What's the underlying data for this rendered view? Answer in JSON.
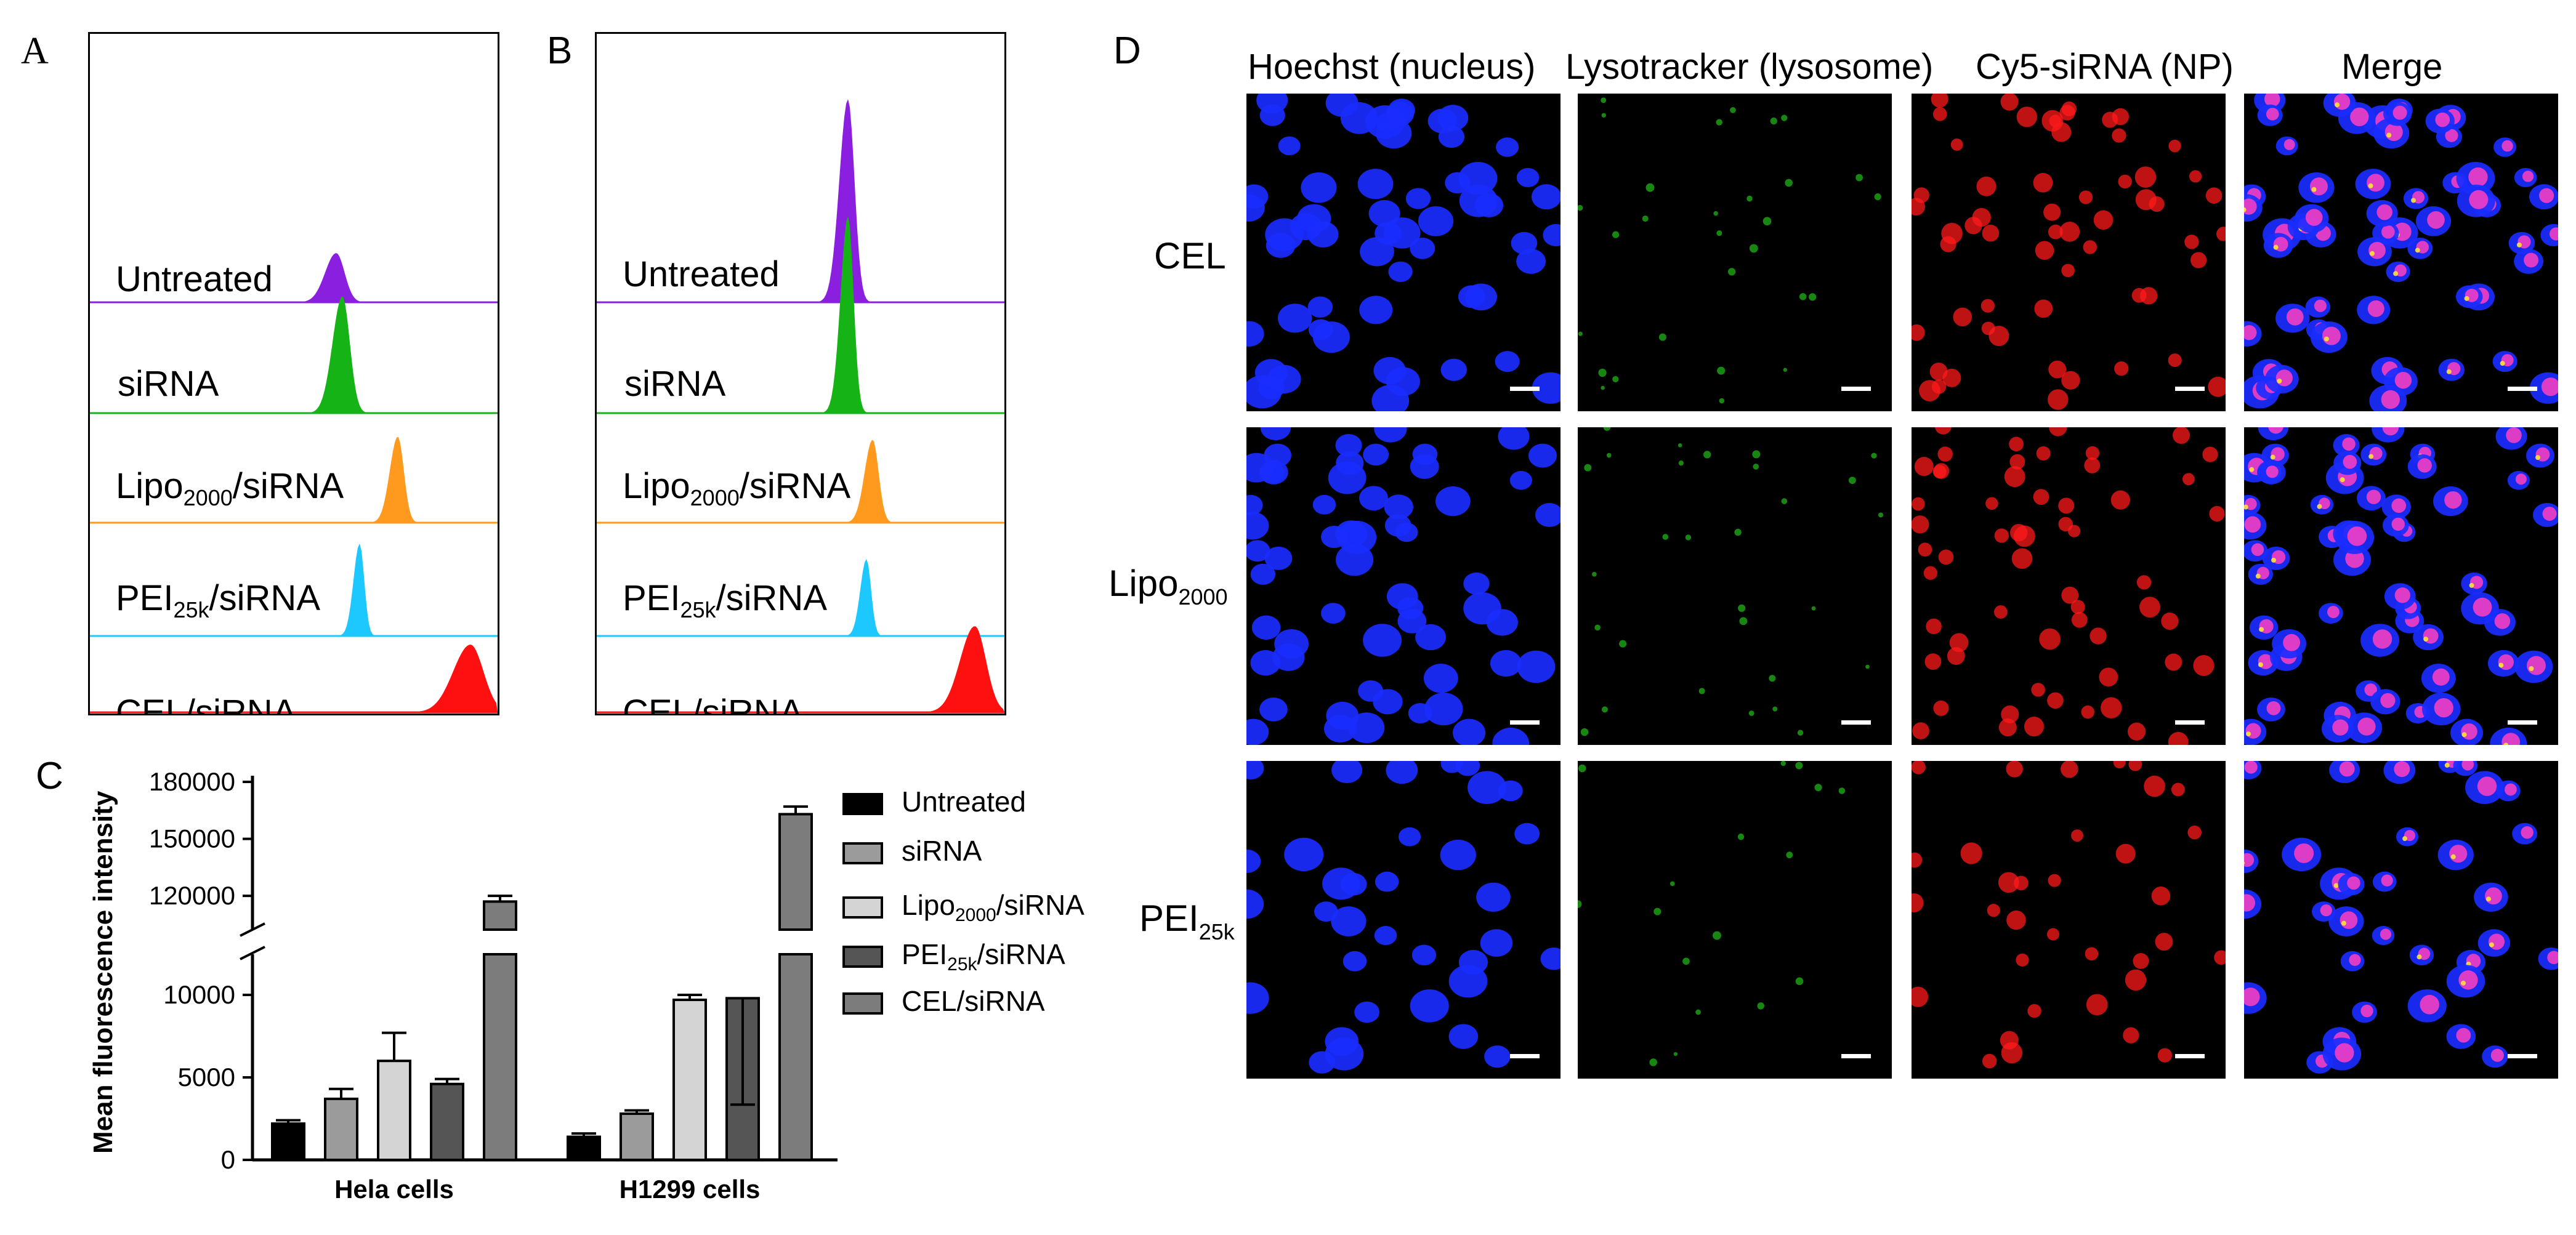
{
  "panel_labels": {
    "a": "A",
    "b": "B",
    "c": "C",
    "d": "D"
  },
  "histograms": {
    "labels": [
      {
        "main": "Untreated",
        "sub": "",
        "tail": ""
      },
      {
        "main": "siRNA",
        "sub": "",
        "tail": ""
      },
      {
        "main": "Lipo",
        "sub": "2000",
        "tail": "/siRNA"
      },
      {
        "main": "PEI",
        "sub": "25k",
        "tail": "/siRNA"
      },
      {
        "main": "CEL/siRNA",
        "sub": "",
        "tail": ""
      }
    ],
    "colors": [
      "#8a1fe0",
      "#16b316",
      "#ff9a1f",
      "#1cc8ff",
      "#ff1010"
    ]
  },
  "chart_data": {
    "type": "bar",
    "ylabel": "Mean fluorescence intensity",
    "y_axis_break": [
      10000,
      110000
    ],
    "yticks": [
      0,
      5000,
      10000,
      120000,
      150000,
      180000
    ],
    "categories": [
      "Hela cells",
      "H1299 cells"
    ],
    "series": [
      {
        "name": "Untreated",
        "color": "#000000",
        "values": [
          2200,
          1400
        ],
        "errors": [
          200,
          200
        ]
      },
      {
        "name": "siRNA",
        "color": "#9b9b9b",
        "values": [
          3700,
          2800
        ],
        "errors": [
          600,
          200
        ]
      },
      {
        "name": "Lipo2000/siRNA",
        "color": "#d4d4d4",
        "values": [
          6000,
          9700
        ],
        "errors": [
          1700,
          300
        ]
      },
      {
        "name": "PEI25k/siRNA",
        "color": "#555555",
        "values": [
          4600,
          9800
        ],
        "errors": [
          300,
          300
        ]
      },
      {
        "name": "CEL/siRNA",
        "color": "#7c7c7c",
        "values": [
          117000,
          163000
        ],
        "errors": [
          3000,
          4000
        ]
      }
    ],
    "legend": [
      {
        "main": "Untreated",
        "sub": "",
        "tail": ""
      },
      {
        "main": "siRNA",
        "sub": "",
        "tail": ""
      },
      {
        "main": "Lipo",
        "sub": "2000",
        "tail": "/siRNA"
      },
      {
        "main": "PEI",
        "sub": "25k",
        "tail": "/siRNA"
      },
      {
        "main": "CEL/siRNA",
        "sub": "",
        "tail": ""
      }
    ]
  },
  "microscopy": {
    "columns": [
      "Hoechst (nucleus)",
      "Lysotracker (lysosome)",
      "Cy5-siRNA (NP)",
      "Merge"
    ],
    "rows": [
      {
        "main": "CEL",
        "sub": ""
      },
      {
        "main": "Lipo",
        "sub": "2000"
      },
      {
        "main": "PEI",
        "sub": "25k"
      }
    ],
    "channel_colors": [
      "#1a2cff",
      "#22c01a",
      "#ff1a1a",
      "#ff40c0"
    ]
  }
}
